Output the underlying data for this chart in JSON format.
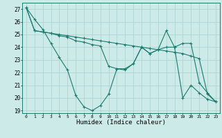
{
  "xlabel": "Humidex (Indice chaleur)",
  "bg_color": "#cceae8",
  "grid_color": "#aed4d1",
  "line_color": "#1a7a6e",
  "xlim": [
    -0.5,
    23.5
  ],
  "ylim": [
    18.8,
    27.5
  ],
  "yticks": [
    19,
    20,
    21,
    22,
    23,
    24,
    25,
    26,
    27
  ],
  "xticks": [
    0,
    1,
    2,
    3,
    4,
    5,
    6,
    7,
    8,
    9,
    10,
    11,
    12,
    13,
    14,
    15,
    16,
    17,
    18,
    19,
    20,
    21,
    22,
    23
  ],
  "series": [
    [
      27.1,
      26.2,
      25.4,
      24.3,
      23.2,
      22.2,
      20.2,
      19.3,
      19.0,
      19.4,
      20.3,
      22.3,
      22.2,
      22.7,
      24.0,
      23.5,
      23.8,
      24.0,
      24.0,
      20.0,
      21.0,
      20.4,
      19.9,
      19.7
    ],
    [
      27.1,
      25.3,
      25.2,
      25.1,
      25.0,
      24.9,
      24.8,
      24.7,
      24.6,
      24.5,
      24.4,
      24.3,
      24.2,
      24.1,
      24.0,
      23.9,
      23.8,
      23.7,
      23.6,
      23.5,
      23.3,
      23.1,
      20.3,
      19.7
    ],
    [
      27.1,
      25.3,
      25.2,
      25.1,
      24.9,
      24.8,
      24.5,
      24.4,
      24.2,
      24.1,
      22.5,
      22.3,
      22.3,
      22.7,
      24.0,
      23.5,
      23.8,
      25.3,
      24.0,
      24.3,
      24.3,
      21.2,
      20.4,
      19.7
    ]
  ]
}
